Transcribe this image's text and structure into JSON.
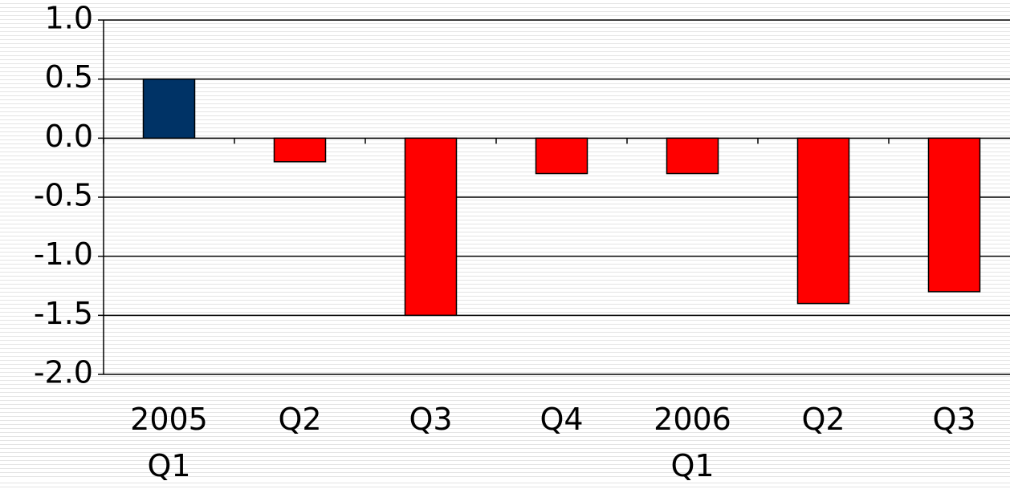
{
  "chart_data": {
    "type": "bar",
    "categories": [
      "2005\nQ1",
      "Q2",
      "Q3",
      "Q4",
      "2006\nQ1",
      "Q2",
      "Q3"
    ],
    "values": [
      0.5,
      -0.2,
      -1.5,
      -0.3,
      -0.3,
      -1.4,
      -1.3
    ],
    "colors": [
      "#003366",
      "#ff0000",
      "#ff0000",
      "#ff0000",
      "#ff0000",
      "#ff0000",
      "#ff0000"
    ],
    "ylim": [
      -2,
      1
    ],
    "yticks": [
      {
        "value": -2,
        "label": "-2.0"
      },
      -1.5,
      {
        "value": -1,
        "label": "-1.0"
      },
      -0.5,
      {
        "value": 0,
        "label": "0.0"
      },
      0.5,
      {
        "value": 1,
        "label": "1.0"
      }
    ],
    "grid": true
  }
}
